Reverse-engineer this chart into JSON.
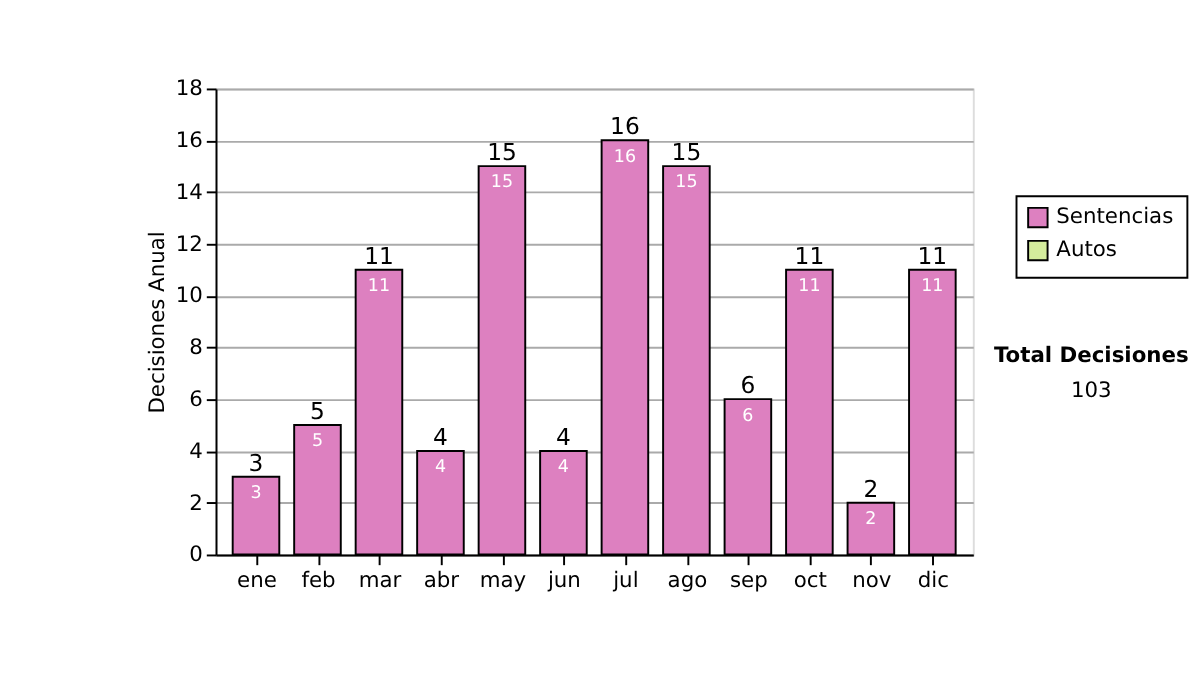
{
  "chart_data": {
    "type": "bar",
    "ylabel": "Decisiones Anual",
    "categories": [
      "ene",
      "feb",
      "mar",
      "abr",
      "may",
      "jun",
      "jul",
      "ago",
      "sep",
      "oct",
      "nov",
      "dic"
    ],
    "series": [
      {
        "name": "Sentencias",
        "color": "#dd80c0",
        "values": [
          3,
          5,
          11,
          4,
          15,
          4,
          16,
          15,
          6,
          11,
          2,
          11
        ]
      },
      {
        "name": "Autos",
        "color": "#d4ec9c",
        "values": [
          null,
          null,
          null,
          null,
          null,
          null,
          null,
          null,
          null,
          null,
          null,
          null
        ]
      }
    ],
    "stacked": true,
    "data_labels": true,
    "totals": [
      "3",
      "5",
      "11",
      "4",
      "15",
      "4",
      "16",
      "15",
      "6",
      "11",
      "2",
      "11"
    ],
    "ylim": [
      0,
      18
    ],
    "yticks": [
      0,
      2,
      4,
      6,
      8,
      10,
      12,
      14,
      16,
      18
    ],
    "grid": "y",
    "legend": "right",
    "annotations": [
      "Total Decisiones",
      "103"
    ]
  }
}
